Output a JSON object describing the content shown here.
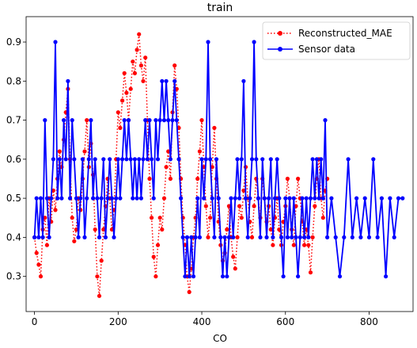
{
  "chart_data": {
    "type": "line",
    "title": "train",
    "xlabel": "CO",
    "ylabel": "",
    "xlim": [
      -20,
      905
    ],
    "ylim": [
      0.21,
      0.965
    ],
    "x_ticks": [
      0,
      200,
      400,
      600,
      800
    ],
    "x_tick_labels": [
      "0",
      "200",
      "400",
      "600",
      "800"
    ],
    "y_ticks": [
      0.3,
      0.4,
      0.5,
      0.6,
      0.7,
      0.8,
      0.9
    ],
    "y_tick_labels": [
      "0.3",
      "0.4",
      "0.5",
      "0.6",
      "0.7",
      "0.8",
      "0.9"
    ],
    "grid": false,
    "legend_position": "top-right",
    "series": [
      {
        "name": "Reconstructed_MAE",
        "color": "#ff0000",
        "line_style": "dotted",
        "marker": "circle",
        "x": [
          0,
          5,
          10,
          15,
          20,
          25,
          30,
          35,
          40,
          45,
          50,
          55,
          60,
          65,
          70,
          75,
          80,
          85,
          90,
          95,
          100,
          105,
          110,
          115,
          120,
          125,
          130,
          135,
          140,
          145,
          150,
          155,
          160,
          165,
          170,
          175,
          180,
          185,
          190,
          195,
          200,
          205,
          210,
          215,
          220,
          225,
          230,
          235,
          240,
          245,
          250,
          255,
          260,
          265,
          270,
          275,
          280,
          285,
          290,
          295,
          300,
          305,
          310,
          315,
          320,
          325,
          330,
          335,
          340,
          345,
          350,
          355,
          360,
          365,
          370,
          375,
          380,
          385,
          390,
          395,
          400,
          405,
          410,
          415,
          420,
          425,
          430,
          435,
          440,
          445,
          450,
          455,
          460,
          465,
          470,
          475,
          480,
          485,
          490,
          495,
          500,
          505,
          510,
          515,
          520,
          525,
          530,
          535,
          540,
          545,
          550,
          555,
          560,
          565,
          570,
          575,
          580,
          585,
          590,
          595,
          600,
          605,
          610,
          615,
          620,
          625,
          630,
          635,
          640,
          645,
          650,
          655,
          660,
          665,
          670,
          675,
          680,
          685,
          690,
          695,
          700
        ],
        "y": [
          0.4,
          0.36,
          0.33,
          0.3,
          0.42,
          0.45,
          0.38,
          0.5,
          0.44,
          0.52,
          0.47,
          0.55,
          0.62,
          0.58,
          0.65,
          0.72,
          0.78,
          0.6,
          0.45,
          0.39,
          0.42,
          0.5,
          0.47,
          0.55,
          0.62,
          0.7,
          0.58,
          0.64,
          0.56,
          0.42,
          0.3,
          0.25,
          0.34,
          0.42,
          0.48,
          0.55,
          0.5,
          0.42,
          0.47,
          0.6,
          0.72,
          0.68,
          0.75,
          0.82,
          0.77,
          0.7,
          0.78,
          0.85,
          0.82,
          0.88,
          0.92,
          0.84,
          0.8,
          0.86,
          0.7,
          0.55,
          0.45,
          0.35,
          0.3,
          0.38,
          0.45,
          0.42,
          0.5,
          0.58,
          0.62,
          0.55,
          0.72,
          0.84,
          0.78,
          0.68,
          0.55,
          0.45,
          0.38,
          0.3,
          0.26,
          0.32,
          0.4,
          0.45,
          0.55,
          0.62,
          0.7,
          0.58,
          0.48,
          0.4,
          0.45,
          0.58,
          0.68,
          0.55,
          0.44,
          0.38,
          0.34,
          0.36,
          0.42,
          0.48,
          0.4,
          0.35,
          0.32,
          0.4,
          0.48,
          0.45,
          0.52,
          0.58,
          0.5,
          0.44,
          0.4,
          0.48,
          0.55,
          0.5,
          0.45,
          0.55,
          0.5,
          0.44,
          0.48,
          0.42,
          0.38,
          0.45,
          0.5,
          0.42,
          0.38,
          0.44,
          0.48,
          0.55,
          0.5,
          0.42,
          0.38,
          0.48,
          0.55,
          0.5,
          0.44,
          0.38,
          0.42,
          0.38,
          0.31,
          0.4,
          0.48,
          0.55,
          0.6,
          0.5,
          0.45,
          0.52,
          0.55
        ]
      },
      {
        "name": "Sensor data",
        "color": "#0000ff",
        "line_style": "solid",
        "marker": "circle",
        "x": [
          0,
          5,
          10,
          15,
          20,
          25,
          30,
          35,
          40,
          45,
          50,
          55,
          60,
          65,
          70,
          75,
          80,
          85,
          90,
          95,
          100,
          105,
          110,
          115,
          120,
          125,
          130,
          135,
          140,
          145,
          150,
          155,
          160,
          165,
          170,
          175,
          180,
          185,
          190,
          195,
          200,
          205,
          210,
          215,
          220,
          225,
          230,
          235,
          240,
          245,
          250,
          255,
          260,
          265,
          270,
          275,
          280,
          285,
          290,
          295,
          300,
          305,
          310,
          315,
          320,
          325,
          330,
          335,
          340,
          345,
          350,
          355,
          360,
          365,
          370,
          375,
          380,
          385,
          390,
          395,
          400,
          405,
          410,
          415,
          420,
          425,
          430,
          435,
          440,
          445,
          450,
          455,
          460,
          465,
          470,
          475,
          480,
          485,
          490,
          495,
          500,
          505,
          510,
          515,
          520,
          525,
          530,
          535,
          540,
          545,
          550,
          555,
          560,
          565,
          570,
          575,
          580,
          585,
          590,
          595,
          600,
          605,
          610,
          615,
          620,
          625,
          630,
          635,
          640,
          645,
          650,
          655,
          660,
          665,
          670,
          675,
          680,
          685,
          690,
          695,
          700,
          710,
          720,
          730,
          740,
          750,
          760,
          770,
          780,
          790,
          800,
          810,
          820,
          830,
          840,
          850,
          860,
          870,
          880
        ],
        "y": [
          0.4,
          0.5,
          0.4,
          0.5,
          0.4,
          0.7,
          0.5,
          0.4,
          0.5,
          0.6,
          0.9,
          0.5,
          0.6,
          0.5,
          0.7,
          0.6,
          0.8,
          0.5,
          0.7,
          0.6,
          0.5,
          0.4,
          0.5,
          0.6,
          0.4,
          0.5,
          0.6,
          0.7,
          0.5,
          0.6,
          0.5,
          0.4,
          0.5,
          0.6,
          0.4,
          0.5,
          0.6,
          0.5,
          0.4,
          0.5,
          0.6,
          0.5,
          0.6,
          0.7,
          0.6,
          0.7,
          0.6,
          0.5,
          0.6,
          0.5,
          0.6,
          0.5,
          0.6,
          0.7,
          0.6,
          0.7,
          0.6,
          0.5,
          0.7,
          0.6,
          0.7,
          0.8,
          0.7,
          0.8,
          0.7,
          0.6,
          0.7,
          0.8,
          0.7,
          0.6,
          0.5,
          0.4,
          0.3,
          0.4,
          0.3,
          0.4,
          0.3,
          0.4,
          0.5,
          0.4,
          0.6,
          0.5,
          0.6,
          0.9,
          0.6,
          0.5,
          0.4,
          0.6,
          0.5,
          0.4,
          0.3,
          0.4,
          0.3,
          0.4,
          0.5,
          0.4,
          0.5,
          0.6,
          0.5,
          0.6,
          0.8,
          0.5,
          0.4,
          0.5,
          0.6,
          0.9,
          0.6,
          0.5,
          0.4,
          0.6,
          0.5,
          0.4,
          0.5,
          0.6,
          0.4,
          0.5,
          0.6,
          0.5,
          0.4,
          0.3,
          0.5,
          0.4,
          0.5,
          0.4,
          0.5,
          0.4,
          0.3,
          0.4,
          0.5,
          0.4,
          0.5,
          0.4,
          0.5,
          0.6,
          0.5,
          0.6,
          0.5,
          0.6,
          0.5,
          0.7,
          0.4,
          0.5,
          0.4,
          0.3,
          0.4,
          0.6,
          0.4,
          0.5,
          0.4,
          0.5,
          0.4,
          0.6,
          0.4,
          0.5,
          0.3,
          0.5,
          0.4,
          0.5,
          0.5
        ]
      }
    ]
  }
}
